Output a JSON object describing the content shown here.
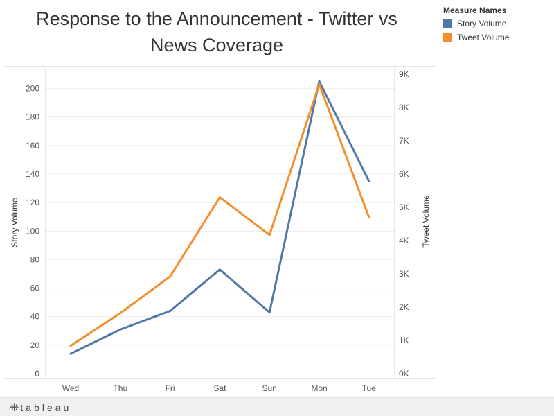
{
  "title": "Response to the Announcement - Twitter vs News Coverage",
  "legend": {
    "title": "Measure Names",
    "items": [
      {
        "label": "Story Volume",
        "color": "#4e79a7"
      },
      {
        "label": "Tweet Volume",
        "color": "#f28e2b"
      }
    ]
  },
  "footer": {
    "logo_mark": "⁜",
    "logo_text": "tableau"
  },
  "chart_data": {
    "type": "line",
    "categories": [
      "Wed",
      "Thu",
      "Fri",
      "Sat",
      "Sun",
      "Mon",
      "Tue"
    ],
    "series": [
      {
        "name": "Story Volume",
        "axis": "left",
        "color": "#4e79a7",
        "values": [
          14,
          31,
          44,
          73,
          43,
          205,
          135
        ]
      },
      {
        "name": "Tweet Volume",
        "axis": "right",
        "color": "#f28e2b",
        "values": [
          840,
          1820,
          2920,
          5300,
          4170,
          8700,
          4700
        ]
      }
    ],
    "ylabel": "Story Volume",
    "y2label": "Tweet Volume",
    "ylim": [
      0,
      210
    ],
    "y2lim": [
      0,
      9000
    ],
    "yticks": [
      0,
      20,
      40,
      60,
      80,
      100,
      120,
      140,
      160,
      180,
      200
    ],
    "y2ticks": [
      {
        "value": 0,
        "label": "0K"
      },
      {
        "value": 1000,
        "label": "1K"
      },
      {
        "value": 2000,
        "label": "2K"
      },
      {
        "value": 3000,
        "label": "3K"
      },
      {
        "value": 4000,
        "label": "4K"
      },
      {
        "value": 5000,
        "label": "5K"
      },
      {
        "value": 6000,
        "label": "6K"
      },
      {
        "value": 7000,
        "label": "7K"
      },
      {
        "value": 8000,
        "label": "8K"
      },
      {
        "value": 9000,
        "label": "9K"
      }
    ],
    "grid": true,
    "legend_position": "top-right"
  }
}
